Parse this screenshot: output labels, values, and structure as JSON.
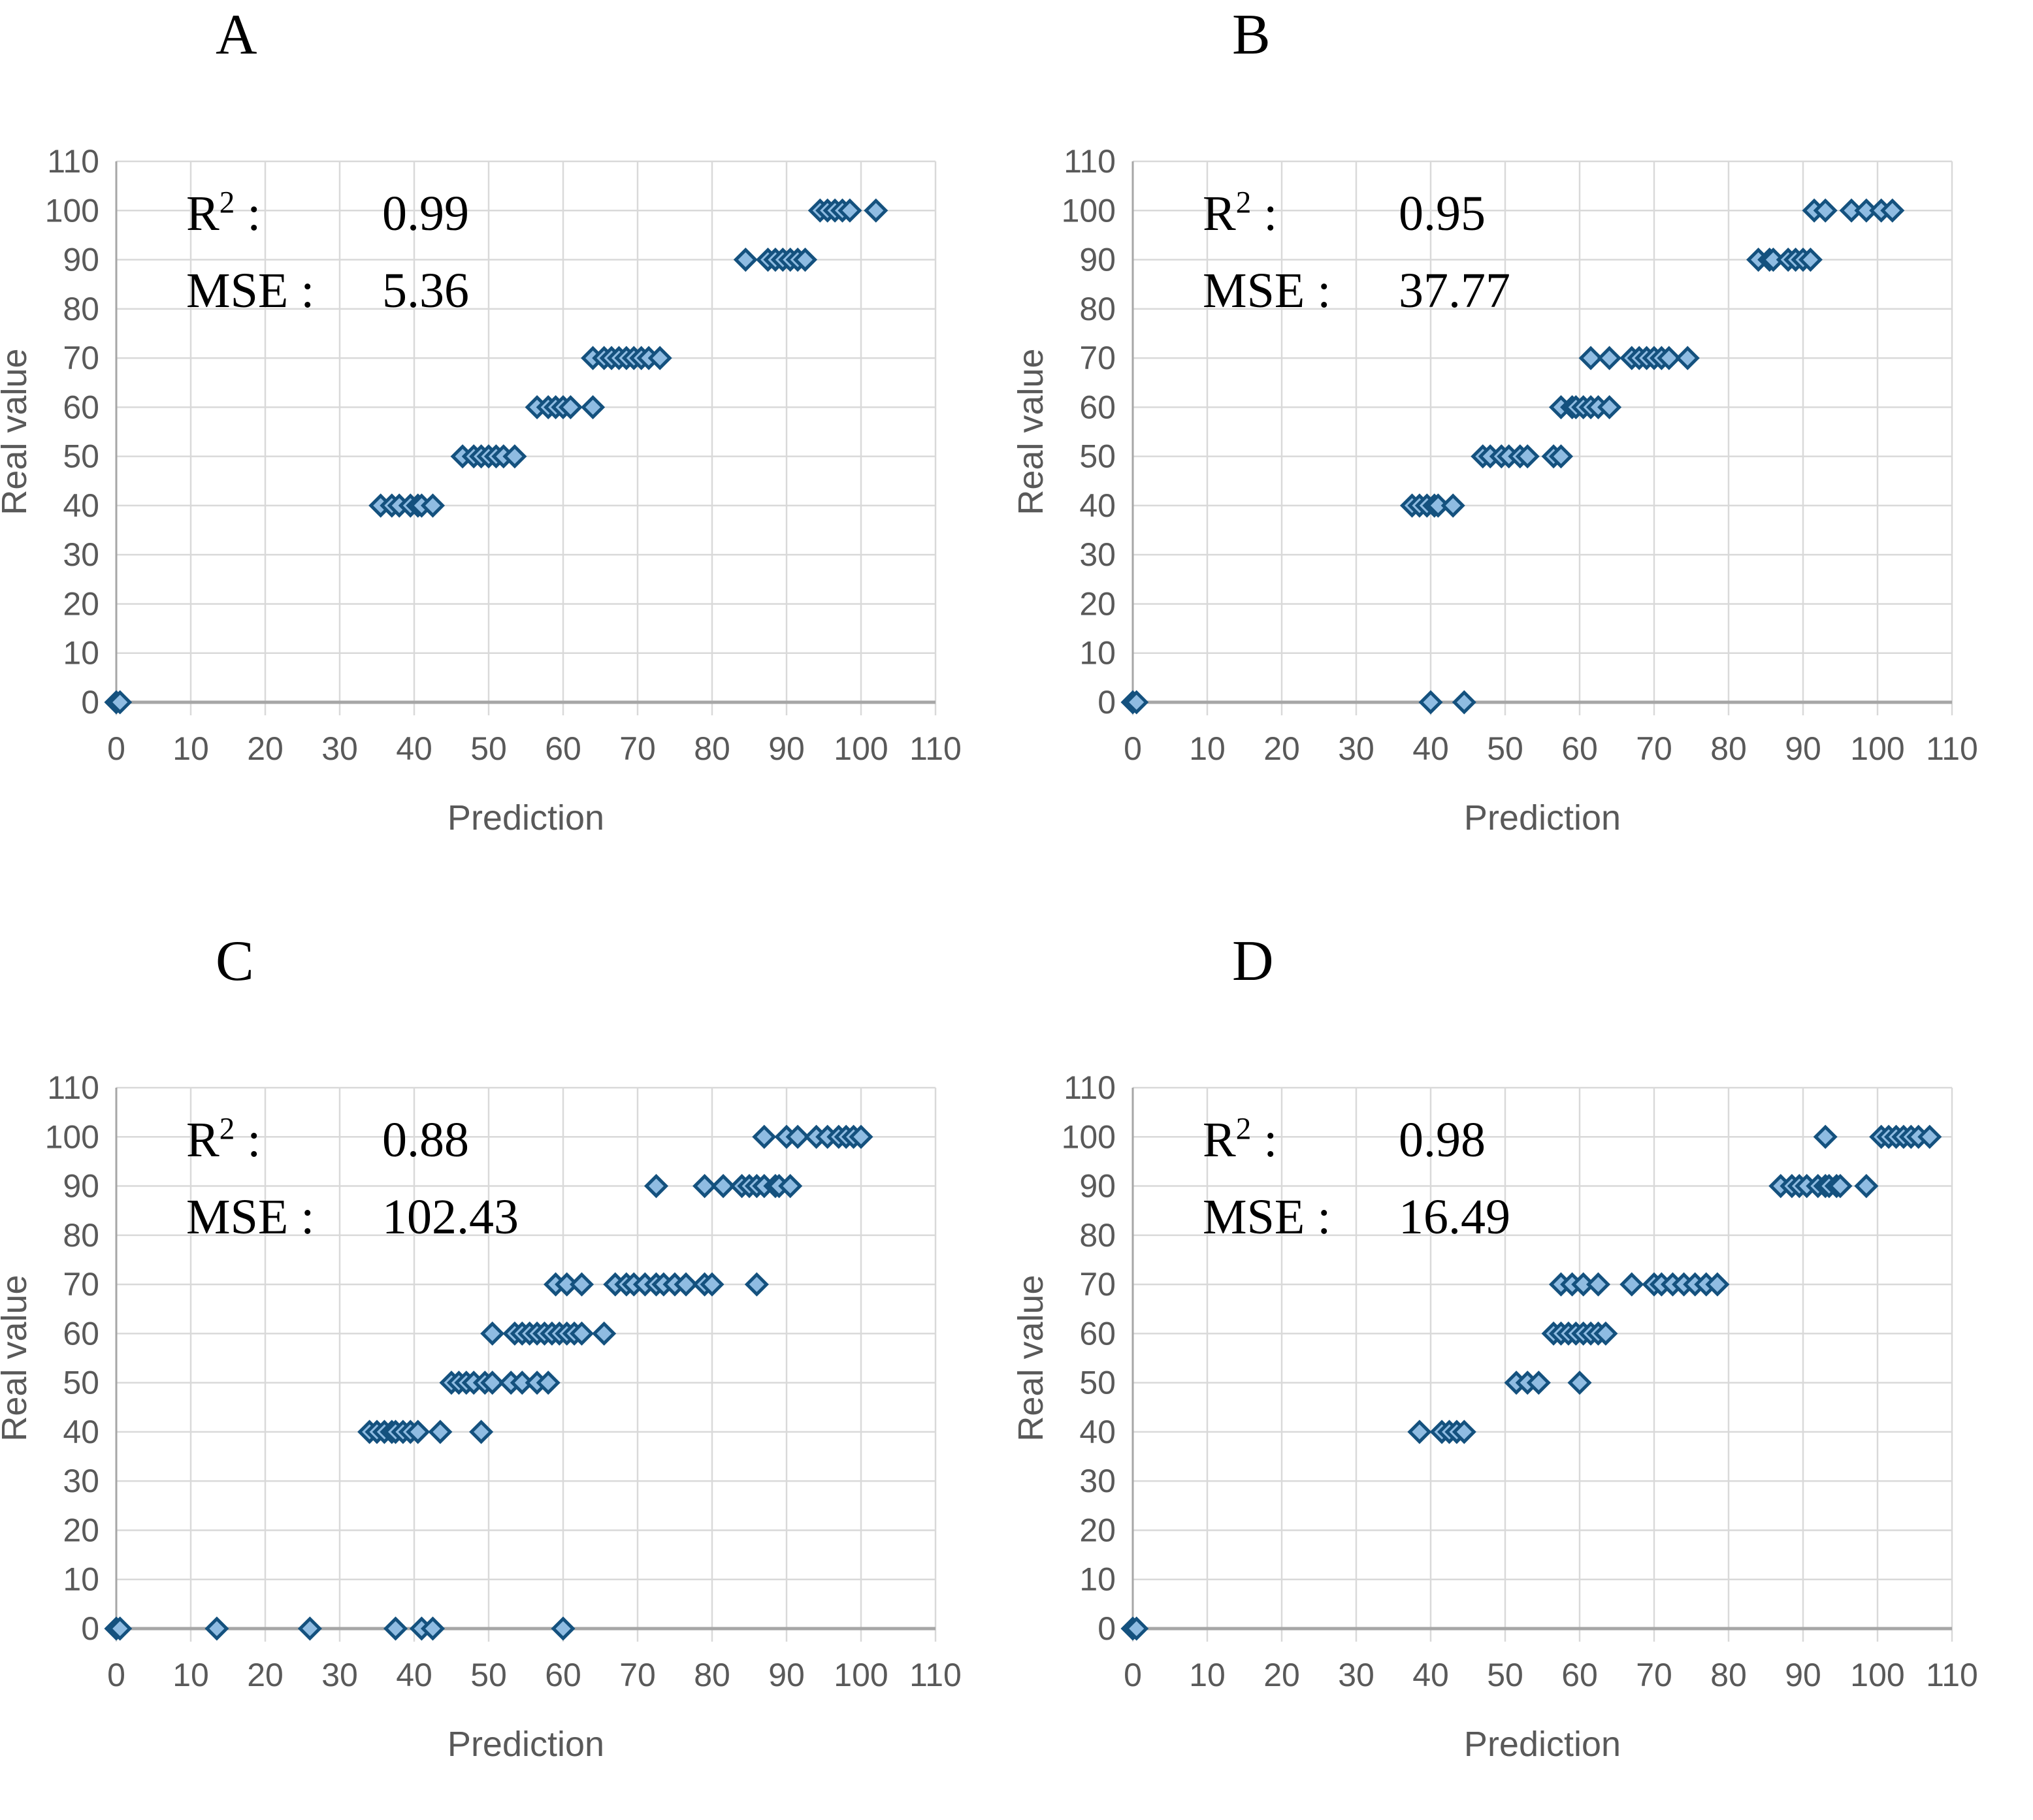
{
  "figure": {
    "colors": {
      "marker_fill": "#8FBCE2",
      "marker_stroke": "#14517E",
      "grid": "#D9D9D9",
      "axis_line": "#A6A6A6",
      "tick_text": "#595959",
      "axis_title_text": "#595959",
      "annotation_text": "#000000"
    },
    "labels": {
      "r2_base": "R",
      "r2_sup": "2",
      "colon": ":",
      "mse": "MSE"
    }
  },
  "chart_data": [
    {
      "type": "scatter",
      "panel_letter": "A",
      "r2": "0.99",
      "mse": "5.36",
      "xlabel": "Prediction",
      "ylabel": "Real value",
      "xlim": [
        0,
        110
      ],
      "ylim": [
        0,
        110
      ],
      "x_tick_step": 10,
      "y_tick_step": 10,
      "grid": true,
      "legend": "none",
      "marker": "diamond",
      "rows": [
        {
          "real": 0,
          "predictions": [
            0,
            0.5
          ]
        },
        {
          "real": 40,
          "predictions": [
            35.5,
            37,
            38,
            39.5,
            40.5,
            41,
            42.5
          ]
        },
        {
          "real": 50,
          "predictions": [
            46.5,
            48,
            49,
            50,
            51,
            52,
            53.5
          ]
        },
        {
          "real": 60,
          "predictions": [
            56.5,
            58,
            59,
            60,
            61,
            64
          ]
        },
        {
          "real": 70,
          "predictions": [
            64,
            65.5,
            66.5,
            67.5,
            68.5,
            69.5,
            70.5,
            71.5,
            73
          ]
        },
        {
          "real": 90,
          "predictions": [
            84.5,
            87.5,
            88.5,
            89.5,
            90.5,
            91.5,
            92.5
          ]
        },
        {
          "real": 100,
          "predictions": [
            94.5,
            95.5,
            96.5,
            97.5,
            98.5,
            102
          ]
        }
      ]
    },
    {
      "type": "scatter",
      "panel_letter": "B",
      "r2": "0.95",
      "mse": "37.77",
      "xlabel": "Prediction",
      "ylabel": "Real value",
      "xlim": [
        0,
        110
      ],
      "ylim": [
        0,
        110
      ],
      "x_tick_step": 10,
      "y_tick_step": 10,
      "grid": true,
      "legend": "none",
      "marker": "diamond",
      "rows": [
        {
          "real": 0,
          "predictions": [
            0,
            0.5,
            40,
            44.5
          ]
        },
        {
          "real": 40,
          "predictions": [
            37.5,
            38.5,
            39.5,
            40.5,
            41,
            43
          ]
        },
        {
          "real": 50,
          "predictions": [
            47,
            48,
            49.5,
            50.5,
            52,
            53,
            56.5,
            57.5
          ]
        },
        {
          "real": 60,
          "predictions": [
            57.5,
            59,
            59.5,
            60.5,
            61.5,
            62.5,
            64
          ]
        },
        {
          "real": 70,
          "predictions": [
            61.5,
            64,
            67,
            68,
            69,
            70,
            71,
            72,
            74.5
          ]
        },
        {
          "real": 90,
          "predictions": [
            84,
            85.5,
            86,
            88,
            89,
            90,
            91
          ]
        },
        {
          "real": 100,
          "predictions": [
            91.5,
            93,
            96.5,
            98.5,
            100.5,
            102
          ]
        }
      ]
    },
    {
      "type": "scatter",
      "panel_letter": "C",
      "r2": "0.88",
      "mse": "102.43",
      "xlabel": "Prediction",
      "ylabel": "Real value",
      "xlim": [
        0,
        110
      ],
      "ylim": [
        0,
        110
      ],
      "x_tick_step": 10,
      "y_tick_step": 10,
      "grid": true,
      "legend": "none",
      "marker": "diamond",
      "rows": [
        {
          "real": 0,
          "predictions": [
            0,
            0.5,
            13.5,
            26,
            37.5,
            41,
            42.5,
            60
          ]
        },
        {
          "real": 40,
          "predictions": [
            34,
            35,
            36,
            37,
            37.5,
            38.5,
            39.5,
            40.5,
            43.5,
            49
          ]
        },
        {
          "real": 50,
          "predictions": [
            45,
            46,
            47,
            48,
            49.5,
            50.5,
            53,
            54.5,
            56.5,
            58
          ]
        },
        {
          "real": 60,
          "predictions": [
            50.5,
            53.5,
            54.5,
            55.5,
            56.5,
            57.5,
            58.5,
            59.5,
            60.5,
            61.5,
            62.5,
            65.5
          ]
        },
        {
          "real": 70,
          "predictions": [
            59,
            60.5,
            62.5,
            67,
            68.5,
            69.5,
            71,
            72.5,
            73.5,
            75,
            76.5,
            79,
            80,
            86
          ]
        },
        {
          "real": 90,
          "predictions": [
            72.5,
            79,
            81.5,
            84,
            85,
            86,
            87,
            88.5,
            89,
            90.5
          ]
        },
        {
          "real": 100,
          "predictions": [
            87,
            90,
            91.5,
            94,
            95.5,
            97,
            98,
            99,
            100
          ]
        }
      ]
    },
    {
      "type": "scatter",
      "panel_letter": "D",
      "r2": "0.98",
      "mse": "16.49",
      "xlabel": "Prediction",
      "ylabel": "Real value",
      "xlim": [
        0,
        110
      ],
      "ylim": [
        0,
        110
      ],
      "x_tick_step": 10,
      "y_tick_step": 10,
      "grid": true,
      "legend": "none",
      "marker": "diamond",
      "rows": [
        {
          "real": 0,
          "predictions": [
            0,
            0.5
          ]
        },
        {
          "real": 40,
          "predictions": [
            38.5,
            41.5,
            42.5,
            43.5,
            44.5
          ]
        },
        {
          "real": 50,
          "predictions": [
            51.5,
            53,
            54.5,
            60
          ]
        },
        {
          "real": 60,
          "predictions": [
            56.5,
            57.5,
            58.5,
            59.5,
            60.5,
            61.5,
            62.5,
            63.5
          ]
        },
        {
          "real": 70,
          "predictions": [
            57.5,
            59,
            60.5,
            62.5,
            67,
            70,
            71,
            72.5,
            74,
            75.5,
            77,
            78.5
          ]
        },
        {
          "real": 90,
          "predictions": [
            87,
            88.5,
            89.5,
            90.5,
            92,
            93,
            93.5,
            94.5,
            95,
            98.5
          ]
        },
        {
          "real": 100,
          "predictions": [
            93,
            100.5,
            101.5,
            102.5,
            103.5,
            104.5,
            105.5,
            107
          ]
        }
      ]
    }
  ]
}
